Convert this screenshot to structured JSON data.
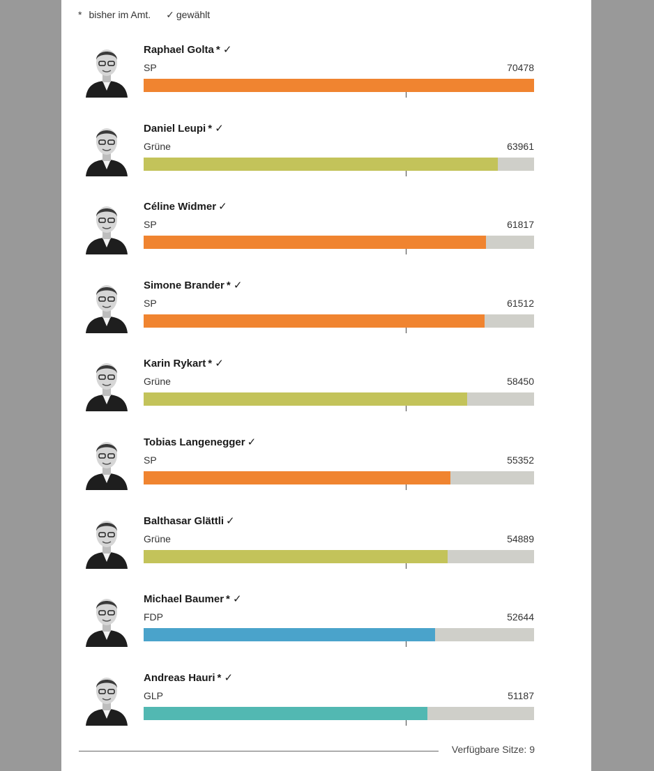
{
  "legend": {
    "incumbent_symbol": "*",
    "incumbent_label": "bisher im Amt.",
    "elected_symbol": "✓",
    "elected_label": "gewählt"
  },
  "chart_data": {
    "type": "bar",
    "orientation": "horizontal",
    "max_value": 70478,
    "categories": [
      "Raphael Golta",
      "Daniel Leupi",
      "Céline Widmer",
      "Simone Brander",
      "Karin Rykart",
      "Tobias Langenegger",
      "Balthasar Glättli",
      "Michael Baumer",
      "Andreas Hauri"
    ],
    "values": [
      70478,
      63961,
      61817,
      61512,
      58450,
      55352,
      54889,
      52644,
      51187
    ],
    "party_colors": {
      "SP": "#f08430",
      "Grüne": "#c3c35a",
      "FDP": "#4aa3cb",
      "GLP": "#52b8b2"
    },
    "candidates": [
      {
        "name": "Raphael Golta",
        "marks": "* ✓",
        "party": "SP",
        "votes": 70478,
        "votes_label": "70478",
        "avatar_icon": "portrait-icon"
      },
      {
        "name": "Daniel Leupi",
        "marks": "* ✓",
        "party": "Grüne",
        "votes": 63961,
        "votes_label": "63961",
        "avatar_icon": "portrait-icon"
      },
      {
        "name": "Céline Widmer",
        "marks": "✓",
        "party": "SP",
        "votes": 61817,
        "votes_label": "61817",
        "avatar_icon": "portrait-icon"
      },
      {
        "name": "Simone Brander",
        "marks": "* ✓",
        "party": "SP",
        "votes": 61512,
        "votes_label": "61512",
        "avatar_icon": "portrait-icon"
      },
      {
        "name": "Karin Rykart",
        "marks": "* ✓",
        "party": "Grüne",
        "votes": 58450,
        "votes_label": "58450",
        "avatar_icon": "portrait-icon"
      },
      {
        "name": "Tobias Langenegger",
        "marks": "✓",
        "party": "SP",
        "votes": 55352,
        "votes_label": "55352",
        "avatar_icon": "portrait-icon"
      },
      {
        "name": "Balthasar Glättli",
        "marks": "✓",
        "party": "Grüne",
        "votes": 54889,
        "votes_label": "54889",
        "avatar_icon": "portrait-icon"
      },
      {
        "name": "Michael Baumer",
        "marks": "* ✓",
        "party": "FDP",
        "votes": 52644,
        "votes_label": "52644",
        "avatar_icon": "portrait-icon"
      },
      {
        "name": "Andreas Hauri",
        "marks": "* ✓",
        "party": "GLP",
        "votes": 51187,
        "votes_label": "51187",
        "avatar_icon": "portrait-icon"
      }
    ]
  },
  "footer": {
    "seats_label": "Verfügbare Sitze: 9"
  }
}
